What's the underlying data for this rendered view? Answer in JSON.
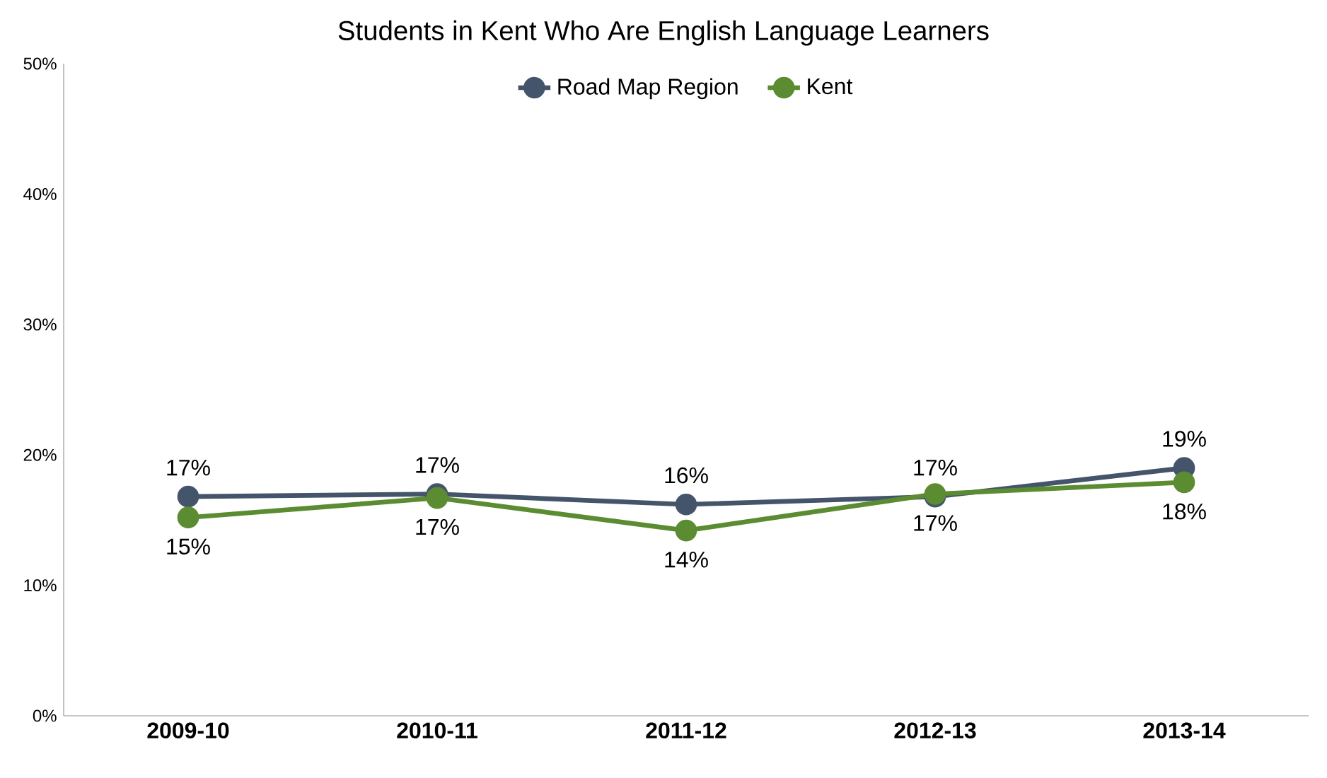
{
  "chart_data": {
    "type": "line",
    "title": "Students in Kent Who Are English Language Learners",
    "categories": [
      "2009-10",
      "2010-11",
      "2011-12",
      "2012-13",
      "2013-14"
    ],
    "series": [
      {
        "name": "Road Map Region",
        "color": "#44546a",
        "values": [
          16.8,
          17.0,
          16.2,
          16.8,
          19.0
        ],
        "value_labels": [
          "17%",
          "17%",
          "16%",
          "17%",
          "19%"
        ]
      },
      {
        "name": "Kent",
        "color": "#5b8c32",
        "values": [
          15.2,
          16.7,
          14.2,
          17.0,
          17.9
        ],
        "value_labels": [
          "15%",
          "17%",
          "14%",
          "17%",
          "18%"
        ]
      }
    ],
    "ylim": [
      0,
      50
    ],
    "yticks": [
      {
        "value": 0,
        "label": "0%"
      },
      {
        "value": 10,
        "label": "10%"
      },
      {
        "value": 20,
        "label": "20%"
      },
      {
        "value": 30,
        "label": "30%"
      },
      {
        "value": 40,
        "label": "40%"
      },
      {
        "value": 50,
        "label": "50%"
      }
    ],
    "marker": "circle",
    "line_style": "solid",
    "legend": "top",
    "grid": false
  }
}
